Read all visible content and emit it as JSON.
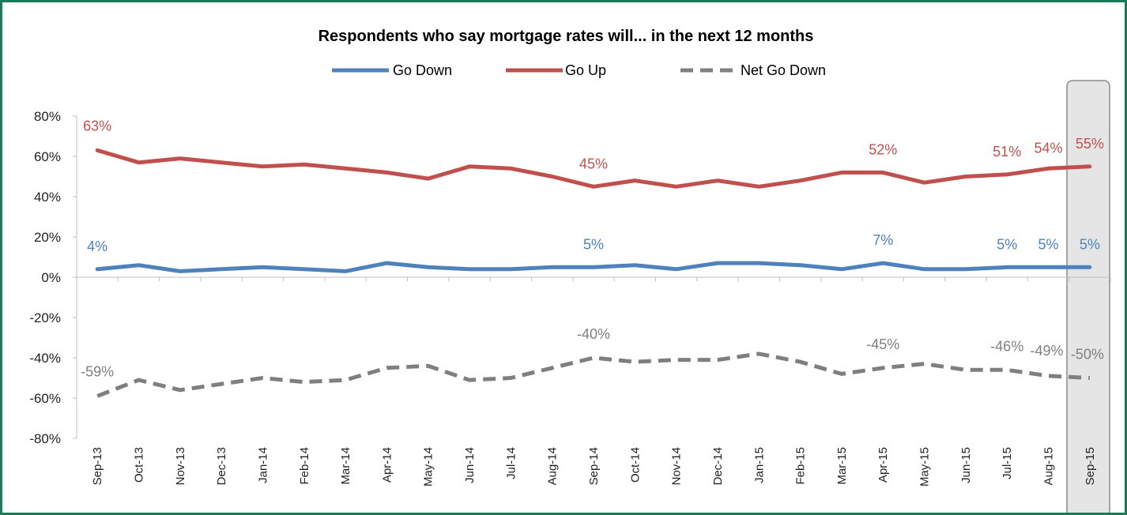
{
  "chart_data": {
    "type": "line",
    "title": "Respondents who say mortgage rates will... in the next 12 months",
    "xlabel": "",
    "ylabel": "",
    "ylim": [
      -80,
      80
    ],
    "yticks": [
      "80%",
      "60%",
      "40%",
      "20%",
      "0%",
      "-20%",
      "-40%",
      "-60%",
      "-80%"
    ],
    "ytick_values": [
      80,
      60,
      40,
      20,
      0,
      -20,
      -40,
      -60,
      -80
    ],
    "legend_position": "top-center",
    "highlighted_category": "Sep-15",
    "categories": [
      "Sep-13",
      "Oct-13",
      "Nov-13",
      "Dec-13",
      "Jan-14",
      "Feb-14",
      "Mar-14",
      "Apr-14",
      "May-14",
      "Jun-14",
      "Jul-14",
      "Aug-14",
      "Sep-14",
      "Oct-14",
      "Nov-14",
      "Dec-14",
      "Jan-15",
      "Feb-15",
      "Mar-15",
      "Apr-15",
      "May-15",
      "Jun-15",
      "Jul-15",
      "Aug-15",
      "Sep-15"
    ],
    "series": [
      {
        "name": "Go Down",
        "color": "#4f81bd",
        "dash": false,
        "values": [
          4,
          6,
          3,
          4,
          5,
          4,
          3,
          7,
          5,
          4,
          4,
          5,
          5,
          6,
          4,
          7,
          7,
          6,
          4,
          7,
          4,
          4,
          5,
          5,
          5
        ],
        "labels": [
          {
            "index": 0,
            "text": "4%"
          },
          {
            "index": 12,
            "text": "5%"
          },
          {
            "index": 19,
            "text": "7%"
          },
          {
            "index": 22,
            "text": "5%"
          },
          {
            "index": 23,
            "text": "5%"
          },
          {
            "index": 24,
            "text": "5%"
          }
        ]
      },
      {
        "name": "Go Up",
        "color": "#c0504d",
        "dash": false,
        "values": [
          63,
          57,
          59,
          57,
          55,
          56,
          54,
          52,
          49,
          55,
          54,
          50,
          45,
          48,
          45,
          48,
          45,
          48,
          52,
          52,
          47,
          50,
          51,
          54,
          55
        ],
        "labels": [
          {
            "index": 0,
            "text": "63%"
          },
          {
            "index": 12,
            "text": "45%"
          },
          {
            "index": 19,
            "text": "52%"
          },
          {
            "index": 22,
            "text": "51%"
          },
          {
            "index": 23,
            "text": "54%"
          },
          {
            "index": 24,
            "text": "55%"
          }
        ]
      },
      {
        "name": "Net Go Down",
        "color": "#7f7f7f",
        "dash": true,
        "values": [
          -59,
          -51,
          -56,
          -53,
          -50,
          -52,
          -51,
          -45,
          -44,
          -51,
          -50,
          -45,
          -40,
          -42,
          -41,
          -41,
          -38,
          -42,
          -48,
          -45,
          -43,
          -46,
          -46,
          -49,
          -50
        ],
        "labels": [
          {
            "index": 0,
            "text": "-59%"
          },
          {
            "index": 12,
            "text": "-40%"
          },
          {
            "index": 19,
            "text": "-45%"
          },
          {
            "index": 22,
            "text": "-46%"
          },
          {
            "index": 23,
            "text": "-49%"
          },
          {
            "index": 24,
            "text": "-50%"
          }
        ]
      }
    ]
  }
}
